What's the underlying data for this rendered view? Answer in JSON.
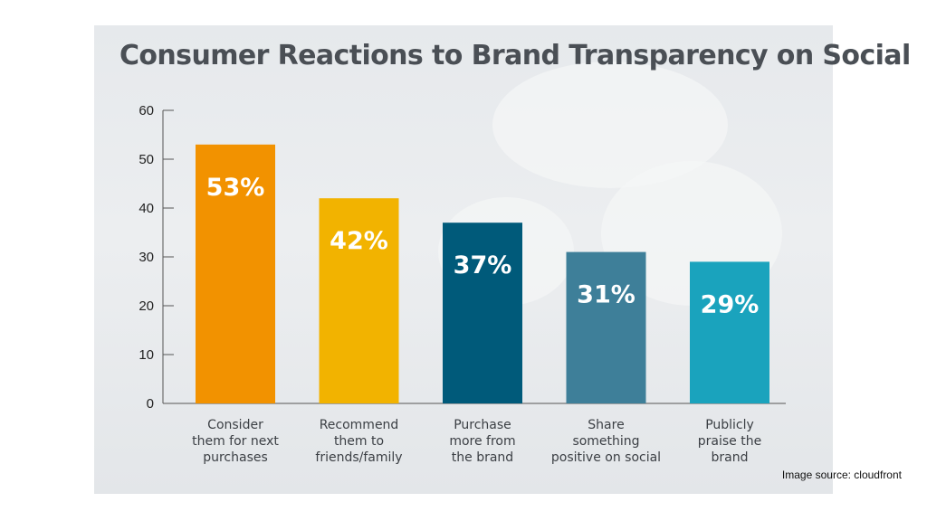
{
  "chart_data": {
    "type": "bar",
    "title": "Consumer Reactions to Brand Transparency on Social",
    "categories": [
      [
        "Consider",
        "them for next",
        "purchases"
      ],
      [
        "Recommend",
        "them to",
        "friends/family"
      ],
      [
        "Purchase",
        "more from",
        "the brand"
      ],
      [
        "Share",
        "something",
        "positive on social"
      ],
      [
        "Publicly",
        "praise the",
        "brand"
      ]
    ],
    "values": [
      53,
      42,
      37,
      31,
      29
    ],
    "data_labels": [
      "53%",
      "42%",
      "37%",
      "31%",
      "29%"
    ],
    "bar_colors": [
      "#f29200",
      "#f2b300",
      "#005a7a",
      "#3e7f99",
      "#1aa3bd"
    ],
    "ylim": [
      0,
      60
    ],
    "yticks": [
      "0",
      "10",
      "20",
      "30",
      "40",
      "50",
      "60"
    ],
    "ytick_values": [
      0,
      10,
      20,
      30,
      40,
      50,
      60
    ],
    "xlabel": "",
    "ylabel": "",
    "grid": false,
    "legend": "none"
  },
  "caption": "Image source: cloudfront"
}
